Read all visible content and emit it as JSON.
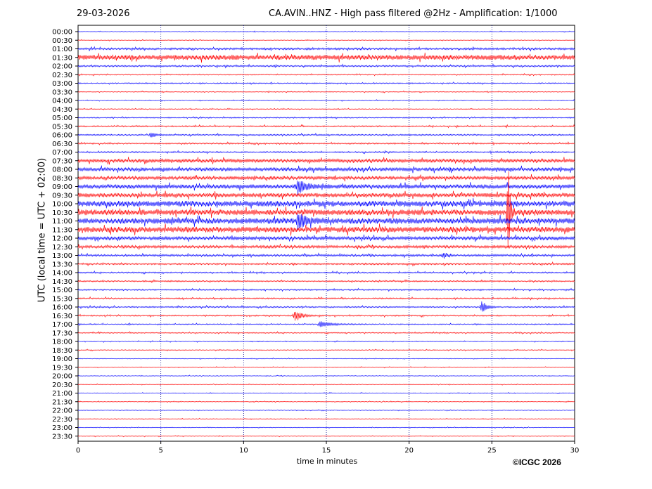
{
  "header": {
    "date": "29-03-2026",
    "title": "CA.AVIN..HNZ - High pass filtered @2Hz - Amplification: 1/1000"
  },
  "footer": {
    "copyright": "©ICGC 2026"
  },
  "chart_data": {
    "type": "line",
    "xlabel": "time in minutes",
    "ylabel": "UTC (local time = UTC + 02:00)",
    "xlim": [
      0,
      30
    ],
    "xticks": [
      0,
      5,
      10,
      15,
      20,
      25,
      30
    ],
    "grid": "vertical dotted lines at each x tick",
    "row_labels": [
      "00:00",
      "00:30",
      "01:00",
      "01:30",
      "02:00",
      "02:30",
      "03:00",
      "03:30",
      "04:00",
      "04:30",
      "05:00",
      "05:30",
      "06:00",
      "06:30",
      "07:00",
      "07:30",
      "08:00",
      "08:30",
      "09:00",
      "09:30",
      "10:00",
      "10:30",
      "11:00",
      "11:30",
      "12:00",
      "12:30",
      "13:00",
      "13:30",
      "14:00",
      "14:30",
      "15:00",
      "15:30",
      "16:00",
      "16:30",
      "17:00",
      "17:30",
      "18:00",
      "18:30",
      "19:00",
      "19:30",
      "20:00",
      "20:30",
      "21:00",
      "21:30",
      "22:00",
      "22:30",
      "23:00",
      "23:30"
    ],
    "trace_colors": [
      "#0000ff",
      "#ff0000"
    ],
    "noise_level": [
      0.5,
      0.5,
      1.5,
      3.5,
      1.2,
      0.8,
      0.8,
      0.6,
      0.6,
      0.6,
      0.8,
      1,
      1,
      1,
      1,
      2.5,
      2.5,
      2.5,
      3,
      3,
      4,
      4,
      4,
      4,
      2.5,
      2,
      1.5,
      1.2,
      1,
      1,
      1,
      1,
      1,
      1,
      0.8,
      0.8,
      0.6,
      0.6,
      0.5,
      0.5,
      0.5,
      0.5,
      0.5,
      0.5,
      0.5,
      0.5,
      0.5,
      0.5
    ],
    "events": [
      {
        "row": "06:00",
        "minute": 4.4,
        "amplitude": 5,
        "duration": 0.5
      },
      {
        "row": "09:00",
        "minute": 13.3,
        "amplitude": 10,
        "duration": 0.9
      },
      {
        "row": "11:00",
        "minute": 13.3,
        "amplitude": 14,
        "duration": 0.9
      },
      {
        "row": "13:00",
        "minute": 22.1,
        "amplitude": 4,
        "duration": 0.4
      },
      {
        "row": "16:00",
        "minute": 24.4,
        "amplitude": 10,
        "duration": 0.5
      },
      {
        "row": "16:30",
        "minute": 13.1,
        "amplitude": 10,
        "duration": 0.7
      },
      {
        "row": "17:00",
        "minute": 14.6,
        "amplitude": 4,
        "duration": 1.5
      },
      {
        "row": "10:30",
        "minute": 26.0,
        "amplitude": 80,
        "duration": 0.2
      }
    ]
  }
}
